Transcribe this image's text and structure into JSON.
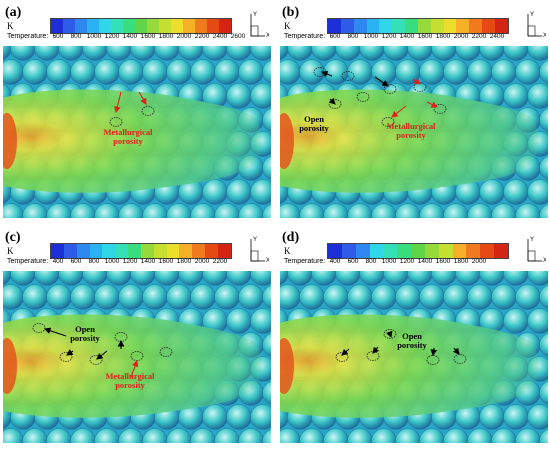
{
  "colorbar_colors": [
    "#1c2fd6",
    "#2e5ce8",
    "#2f88ef",
    "#29b3f2",
    "#2fd6e8",
    "#33e0b8",
    "#38dd7e",
    "#5ed648",
    "#95d93a",
    "#c6e032",
    "#ecdf2c",
    "#f5b028",
    "#f07a1e",
    "#e54a14",
    "#d62412"
  ],
  "panels": [
    {
      "id": "a",
      "label": "(a)",
      "unit": "K",
      "temperature_label": "Temperature:",
      "ticks": [
        "600",
        "800",
        "1000",
        "1200",
        "1400",
        "1600",
        "1800",
        "2000",
        "2200",
        "2400",
        "2600"
      ],
      "annotations": [
        {
          "text": "Metallurgical porosity",
          "color": "red"
        }
      ]
    },
    {
      "id": "b",
      "label": "(b)",
      "unit": "K",
      "temperature_label": "Temperature:",
      "ticks": [
        "600",
        "800",
        "1000",
        "1200",
        "1400",
        "1600",
        "1800",
        "2000",
        "2200",
        "2400"
      ],
      "annotations": [
        {
          "text": "Open porosity",
          "color": "black"
        },
        {
          "text": "Metallurgical porosity",
          "color": "red"
        }
      ]
    },
    {
      "id": "c",
      "label": "(c)",
      "unit": "K",
      "temperature_label": "Temperature:",
      "ticks": [
        "400",
        "600",
        "800",
        "1000",
        "1200",
        "1400",
        "1600",
        "1800",
        "2000",
        "2200"
      ],
      "annotations": [
        {
          "text": "Open porosity",
          "color": "black"
        },
        {
          "text": "Metallurgical porosity",
          "color": "red"
        }
      ]
    },
    {
      "id": "d",
      "label": "(d)",
      "unit": "K",
      "temperature_label": "Temperature:",
      "ticks": [
        "400",
        "600",
        "800",
        "1000",
        "1200",
        "1400",
        "1600",
        "1800",
        "2000"
      ],
      "annotations": [
        {
          "text": "Open porosity",
          "color": "black"
        }
      ]
    }
  ],
  "axis_labels": {
    "y": "Y",
    "x": "X"
  }
}
